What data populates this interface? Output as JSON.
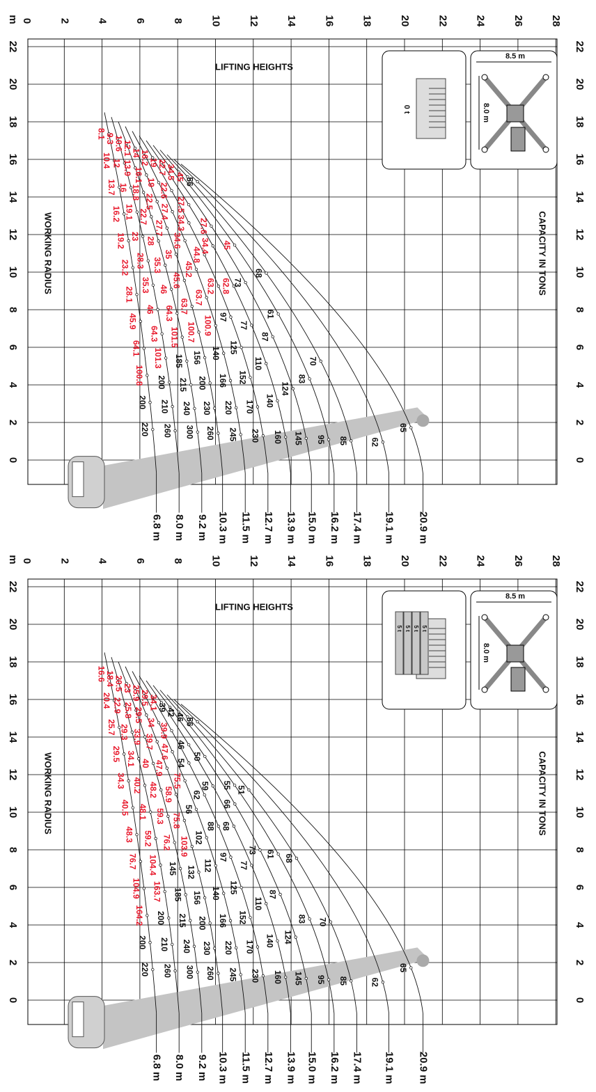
{
  "labels": {
    "lifting_heights": "LIFTING HEIGHTS",
    "working_radius": "WORKING RADIUS",
    "capacity_in_tons": "CAPACITY IN TONS",
    "unit": "m",
    "outrigger_length": "8.5 m",
    "outrigger_width": "8.0 m"
  },
  "colors": {
    "red": "#e8192c",
    "black": "#111111",
    "boom": "#c4c4c4",
    "grid": "#000000"
  },
  "chart_data": [
    {
      "type": "table",
      "title": "",
      "counterweight": "0 t",
      "boom_lengths": [
        "6.8 m",
        "8.0 m",
        "9.2 m",
        "10.3 m",
        "11.5 m",
        "12.7 m",
        "13.9 m",
        "15.0 m",
        "16.2 m",
        "17.4 m",
        "19.1 m",
        "20.9 m"
      ],
      "height_ticks": [
        "0",
        "2",
        "4",
        "6",
        "8",
        "10",
        "12",
        "14",
        "16",
        "18",
        "20",
        "22",
        "24",
        "26",
        "28"
      ],
      "radius_ticks": [
        "22",
        "20",
        "18",
        "16",
        "14",
        "12",
        "10",
        "8",
        "6",
        "4",
        "2",
        "0"
      ],
      "capacities": [
        {
          "boom": "6.8 m",
          "red": [
            "8.1",
            "10.4",
            "13.7",
            "16.2",
            "19.2",
            "23.2",
            "28.1",
            "45.9",
            "64.1",
            "100.8"
          ],
          "black": [
            "200",
            "220"
          ]
        },
        {
          "boom": "8.0 m",
          "red": [
            "9.3",
            "12",
            "16",
            "19.1",
            "23",
            "28.3",
            "35.3",
            "46",
            "64.3",
            "101.3"
          ],
          "black": [
            "200",
            "210",
            "260"
          ]
        },
        {
          "boom": "9.2 m",
          "red": [
            "10.6",
            "13.9",
            "18.8",
            "22.7",
            "28",
            "35.3",
            "46",
            "64.3",
            "101.5"
          ],
          "black": [
            "185",
            "215",
            "240",
            "300"
          ]
        },
        {
          "boom": "10.3 m",
          "red": [
            "12.1",
            "16.1",
            "22.5",
            "27.7",
            "35",
            "45.6",
            "63.7",
            "100.7"
          ],
          "black": [
            "156",
            "200",
            "230",
            "260"
          ]
        },
        {
          "boom": "11.5 m",
          "red": [
            "14",
            "19",
            "27.4",
            "34.6",
            "45.2",
            "63.7",
            "100.9"
          ],
          "black": [
            "140",
            "166",
            "220",
            "245"
          ]
        },
        {
          "boom": "12.7 m",
          "red": [
            "16.2",
            "22.6",
            "34.3",
            "44.8",
            "63.2"
          ],
          "black": [
            "97",
            "125",
            "152",
            "170",
            "230"
          ]
        },
        {
          "boom": "13.9 m",
          "red": [
            "19",
            "27.5",
            "34.4",
            "62.8"
          ],
          "black": [
            "77",
            "110",
            "140",
            "160"
          ]
        },
        {
          "boom": "15.0 m",
          "red": [
            "22.7",
            "27.6"
          ],
          "black": [
            "73",
            "87",
            "124",
            "145"
          ]
        },
        {
          "boom": "16.2 m",
          "red": [
            "34.5",
            "45"
          ],
          "black": [
            "61",
            "83",
            "95"
          ]
        },
        {
          "boom": "17.4 m",
          "red": [
            "45"
          ],
          "black": [
            "68",
            "70",
            "85"
          ]
        },
        {
          "boom": "19.1 m",
          "red": [],
          "black": [
            "56",
            "62"
          ]
        },
        {
          "boom": "20.9 m",
          "red": [],
          "black": [
            "65"
          ]
        }
      ]
    },
    {
      "type": "table",
      "title": "",
      "counterweight": "20 t",
      "counterweight_blocks": [
        "5 t",
        "5 t",
        "5 t",
        "5 t"
      ],
      "boom_lengths": [
        "6.8 m",
        "8.0 m",
        "9.2 m",
        "10.3 m",
        "11.5 m",
        "12.7 m",
        "13.9 m",
        "15.0 m",
        "16.2 m",
        "17.4 m",
        "19.1 m",
        "20.9 m"
      ],
      "height_ticks": [
        "0",
        "2",
        "4",
        "6",
        "8",
        "10",
        "12",
        "14",
        "16",
        "18",
        "20",
        "22",
        "24",
        "26",
        "28"
      ],
      "radius_ticks": [
        "22",
        "20",
        "18",
        "16",
        "14",
        "12",
        "10",
        "8",
        "6",
        "4",
        "2",
        "0"
      ],
      "capacities": [
        {
          "boom": "6.8 m",
          "red": [
            "16.6",
            "20.4",
            "25.7",
            "29.5",
            "34.3",
            "40.5",
            "48.3",
            "76.7",
            "104.9",
            "164.2"
          ],
          "black": [
            "200",
            "220"
          ]
        },
        {
          "boom": "8.0 m",
          "red": [
            "18.4",
            "22.9",
            "29.3",
            "34.1",
            "40.2",
            "48.1",
            "59.2",
            "104.4",
            "163.7"
          ],
          "black": [
            "200",
            "210",
            "260"
          ]
        },
        {
          "boom": "9.2 m",
          "red": [
            "20.5",
            "25.8",
            "33.9",
            "40",
            "48.2",
            "59.3",
            "76.2"
          ],
          "black": [
            "145",
            "185",
            "215",
            "240",
            "300"
          ]
        },
        {
          "boom": "10.3 m",
          "red": [
            "23",
            "29.5",
            "39.7",
            "47.9",
            "58.9",
            "75.8",
            "103.9"
          ],
          "black": [
            "132",
            "156",
            "200",
            "230",
            "260"
          ]
        },
        {
          "boom": "11.5 m",
          "red": [
            "25.9",
            "34",
            "47.6",
            "75.5"
          ],
          "black": [
            "56",
            "102",
            "112",
            "140",
            "166",
            "220",
            "245"
          ]
        },
        {
          "boom": "12.7 m",
          "red": [
            "29.5",
            "39.9"
          ],
          "black": [
            "54",
            "62",
            "88",
            "97",
            "125",
            "152",
            "170",
            "230"
          ]
        },
        {
          "boom": "13.9 m",
          "red": [
            "34.1"
          ],
          "black": [
            "46",
            "59",
            "68",
            "77",
            "110",
            "140",
            "160"
          ]
        },
        {
          "boom": "15.0 m",
          "red": [],
          "black": [
            "39",
            "50",
            "66",
            "73",
            "87",
            "124",
            "145"
          ]
        },
        {
          "boom": "16.2 m",
          "red": [],
          "black": [
            "42",
            "55",
            "61",
            "83",
            "95"
          ]
        },
        {
          "boom": "17.4 m",
          "red": [],
          "black": [
            "46",
            "51",
            "68",
            "70",
            "85"
          ]
        },
        {
          "boom": "19.1 m",
          "red": [],
          "black": [
            "56",
            "62"
          ]
        },
        {
          "boom": "20.9 m",
          "red": [],
          "black": [
            "65"
          ]
        }
      ]
    }
  ]
}
